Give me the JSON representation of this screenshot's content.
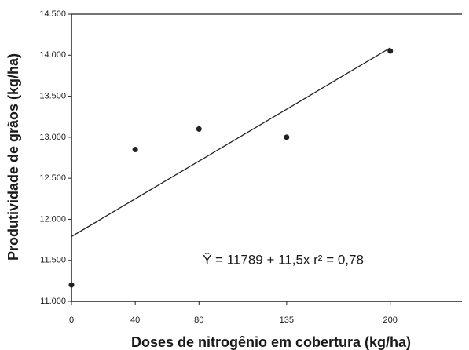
{
  "chart_data": {
    "type": "scatter",
    "xlabel": "Doses de nitrogênio em cobertura (kg/ha)",
    "ylabel": "Produtividade de grãos (kg/ha)",
    "annotation": "Ŷ = 11789 + 11,5x r² = 0,78",
    "x": [
      0,
      40,
      80,
      135,
      200
    ],
    "values": [
      11200,
      12850,
      13100,
      13000,
      14050
    ],
    "color": "#222222",
    "trend_line": {
      "x": [
        0,
        200
      ],
      "values": [
        11789,
        14089
      ]
    },
    "xlim": [
      0,
      245
    ],
    "xticks": [
      0,
      40,
      80,
      135,
      200
    ],
    "ylim": [
      11000,
      14500
    ],
    "yticks": [
      {
        "value": 11000,
        "label": "11.000"
      },
      {
        "value": 11500,
        "label": "11.500"
      },
      {
        "value": 12000,
        "label": "12.000"
      },
      {
        "value": 12500,
        "label": "12.500"
      },
      {
        "value": 13000,
        "label": "13.000"
      },
      {
        "value": 13500,
        "label": "13.500"
      },
      {
        "value": 14000,
        "label": "14.000"
      },
      {
        "value": 14500,
        "label": "14.500"
      }
    ]
  }
}
